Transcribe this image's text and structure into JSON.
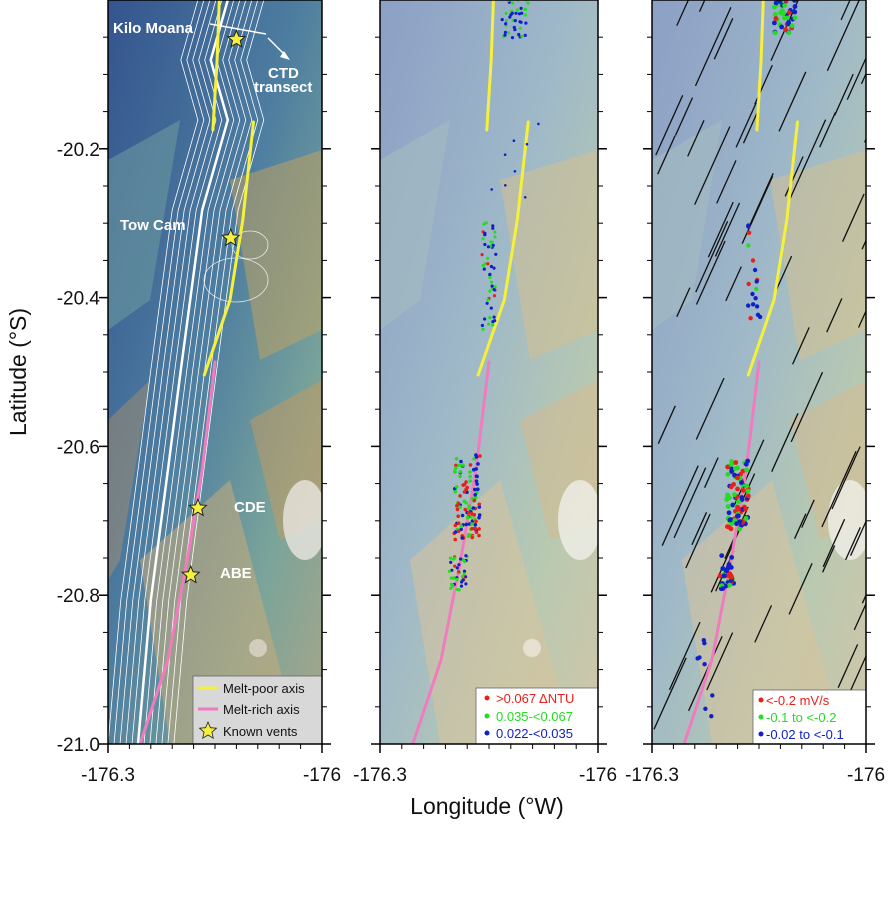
{
  "figure": {
    "ylabel": "Latitude (°S)",
    "xlabel": "Longitude (°W)",
    "y_ticks": [
      {
        "value": -20.2,
        "label": "-20.2"
      },
      {
        "value": -20.4,
        "label": "-20.4"
      },
      {
        "value": -20.6,
        "label": "-20.6"
      },
      {
        "value": -20.8,
        "label": "-20.8"
      },
      {
        "value": -21.0,
        "label": "-21.0"
      }
    ],
    "x_ticks": [
      {
        "value": -176.3,
        "label": "-176.3"
      },
      {
        "value": -176.0,
        "label": "-176"
      }
    ],
    "lon_range": [
      -176.3,
      -176.0
    ],
    "lat_range": [
      -21.0,
      -20.0
    ]
  },
  "panels": [
    {
      "id": "a",
      "annotations": {
        "kilo_moana": "Kilo Moana",
        "ctd_line1": "CTD",
        "ctd_line2": "transect",
        "tow_cam": "Tow Cam",
        "cde": "CDE",
        "abe": "ABE"
      },
      "legend": [
        {
          "symbol": "line",
          "color": "#f5f03c",
          "label": "Melt-poor axis"
        },
        {
          "symbol": "line",
          "color": "#f07cc0",
          "label": "Melt-rich axis"
        },
        {
          "symbol": "star",
          "color": "#f5f03c",
          "label": "Known vents"
        }
      ]
    },
    {
      "id": "b",
      "legend": [
        {
          "symbol": "dot",
          "color": "#e8201a",
          "label": ">0.067 ΔNTU"
        },
        {
          "symbol": "dot",
          "color": "#22dd22",
          "label": "0.035-<0.067"
        },
        {
          "symbol": "dot",
          "color": "#1020c8",
          "label": "0.022-<0.035"
        }
      ]
    },
    {
      "id": "c",
      "legend": [
        {
          "symbol": "dot",
          "color": "#e8201a",
          "label": "<-0.2 mV/s"
        },
        {
          "symbol": "dot",
          "color": "#22dd22",
          "label": "-0.1 to <-0.2"
        },
        {
          "symbol": "dot",
          "color": "#1020c8",
          "label": "-0.02 to <-0.1"
        }
      ]
    }
  ],
  "vents": [
    {
      "name": "Kilo Moana",
      "lon": -176.12,
      "lat": -20.053
    },
    {
      "name": "Tow Cam",
      "lon": -176.128,
      "lat": -20.32
    },
    {
      "name": "CDE",
      "lon": -176.174,
      "lat": -20.683
    },
    {
      "name": "ABE",
      "lon": -176.184,
      "lat": -20.773
    }
  ],
  "colors": {
    "melt_poor": "#f5f03c",
    "melt_rich": "#f07cc0",
    "ctd": "#ffffff",
    "high": "#e8201a",
    "mid": "#22dd22",
    "low": "#1020c8"
  }
}
